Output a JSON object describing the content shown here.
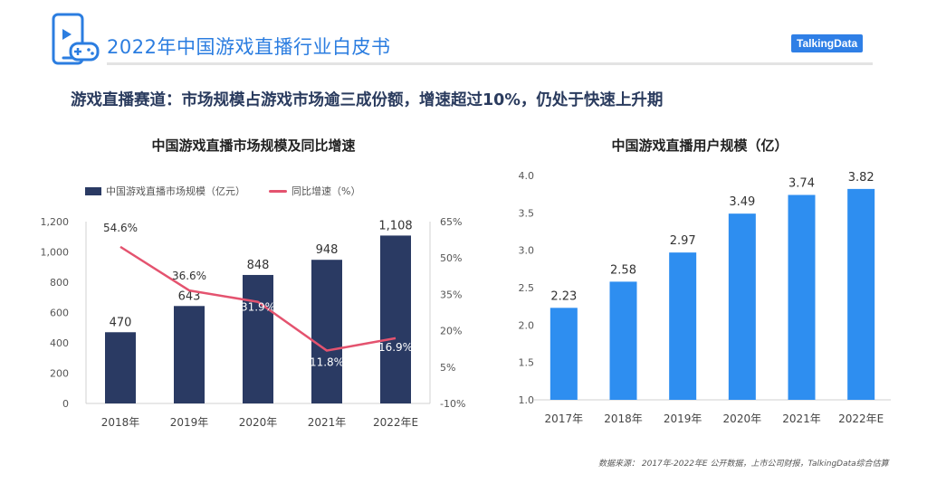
{
  "header": {
    "report_title": "2022年中国游戏直播行业白皮书",
    "brand": "TalkingData",
    "logo_icon": "mobile-gamepad-icon",
    "accent_color": "#2b7de0"
  },
  "headline": "游戏直播赛道：市场规模占游戏市场逾三成份额，增速超过10%，仍处于快速上升期",
  "source": "数据来源： 2017年-2022年E 公开数据，上市公司财报，TalkingData综合估算",
  "chart_data": [
    {
      "type": "bar",
      "title": "中国游戏直播市场规模及同比增速",
      "categories": [
        "2018年",
        "2019年",
        "2020年",
        "2021年",
        "2022年E"
      ],
      "series": [
        {
          "name": "中国游戏直播市场规模（亿元）",
          "type": "bar",
          "axis": "left",
          "values": [
            470,
            643,
            848,
            948,
            1108
          ],
          "labels": [
            "470",
            "643",
            "848",
            "948",
            "1,108"
          ],
          "color": "#2a3a63"
        },
        {
          "name": "同比增速（%）",
          "type": "line",
          "axis": "right",
          "values": [
            54.6,
            36.6,
            31.9,
            11.8,
            16.9
          ],
          "labels": [
            "54.6%",
            "36.6%",
            "31.9%",
            "11.8%",
            "16.9%"
          ],
          "color": "#e4536f"
        }
      ],
      "y_left": {
        "min": 0,
        "max": 1200,
        "ticks": [
          "0",
          "200",
          "400",
          "600",
          "800",
          "1,000",
          "1,200"
        ]
      },
      "y_right": {
        "min": -10,
        "max": 65,
        "ticks": [
          "-10%",
          "5%",
          "20%",
          "35%",
          "50%",
          "65%"
        ]
      },
      "grid": false,
      "legend": "top-left"
    },
    {
      "type": "bar",
      "title": "中国游戏直播用户规模（亿）",
      "categories": [
        "2017年",
        "2018年",
        "2019年",
        "2020年",
        "2021年",
        "2022年E"
      ],
      "values": [
        2.23,
        2.58,
        2.97,
        3.49,
        3.74,
        3.82
      ],
      "labels": [
        "2.23",
        "2.58",
        "2.97",
        "3.49",
        "3.74",
        "3.82"
      ],
      "color": "#2e8ef0",
      "ylim": [
        1.0,
        4.0
      ],
      "y_ticks": [
        "1.0",
        "1.5",
        "2.0",
        "2.5",
        "3.0",
        "3.5",
        "4.0"
      ],
      "grid": false
    }
  ]
}
